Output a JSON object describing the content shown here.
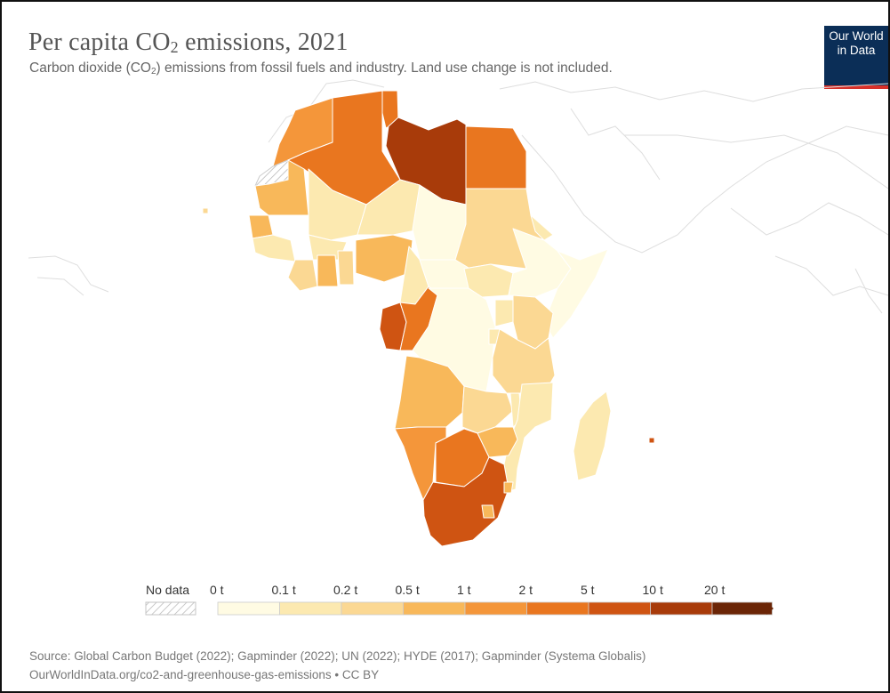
{
  "header": {
    "title_main": "Per capita CO",
    "title_sub": "2",
    "title_rest": " emissions, 2021",
    "subtitle_a": "Carbon dioxide (CO",
    "subtitle_sub": "2",
    "subtitle_b": ") emissions from fossil fuels and industry. Land use change is not included."
  },
  "logo": {
    "line1": "Our World",
    "line2": "in Data",
    "bg": "#0b2e57",
    "accent": "#d7312a"
  },
  "legend": {
    "no_data_label": "No data",
    "bins": [
      {
        "label": "0 t",
        "color": "#fffbe3"
      },
      {
        "label": "0.1 t",
        "color": "#fce9b0"
      },
      {
        "label": "0.2 t",
        "color": "#fbd893"
      },
      {
        "label": "0.5 t",
        "color": "#f8b85a"
      },
      {
        "label": "1 t",
        "color": "#f4963a"
      },
      {
        "label": "2 t",
        "color": "#e9761f"
      },
      {
        "label": "5 t",
        "color": "#cf5412"
      },
      {
        "label": "10 t",
        "color": "#a83b0a"
      },
      {
        "label": "20 t",
        "color": "#6b2506"
      }
    ]
  },
  "regions": [
    {
      "name": "Morocco",
      "bin": "1-2 t"
    },
    {
      "name": "Algeria",
      "bin": "2-5 t"
    },
    {
      "name": "Tunisia",
      "bin": "2-5 t"
    },
    {
      "name": "Libya",
      "bin": "5-10 t"
    },
    {
      "name": "Egypt",
      "bin": "2-5 t"
    },
    {
      "name": "Western Sahara",
      "bin": "No data"
    },
    {
      "name": "Mauritania",
      "bin": "0.5-1 t"
    },
    {
      "name": "Mali",
      "bin": "0.1-0.2 t"
    },
    {
      "name": "Niger",
      "bin": "0.1-0.2 t"
    },
    {
      "name": "Chad",
      "bin": "0-0.1 t"
    },
    {
      "name": "Sudan",
      "bin": "0.2-0.5 t"
    },
    {
      "name": "Senegal",
      "bin": "0.5-1 t"
    },
    {
      "name": "Nigeria",
      "bin": "0.5-1 t"
    },
    {
      "name": "Ghana",
      "bin": "0.5-1 t"
    },
    {
      "name": "Gabon",
      "bin": "2-5 t"
    },
    {
      "name": "Congo",
      "bin": "1-2 t"
    },
    {
      "name": "DR Congo",
      "bin": "0-0.1 t"
    },
    {
      "name": "Angola",
      "bin": "0.5-1 t"
    },
    {
      "name": "Namibia",
      "bin": "1-2 t"
    },
    {
      "name": "Botswana",
      "bin": "2-5 t"
    },
    {
      "name": "Zimbabwe",
      "bin": "0.5-1 t"
    },
    {
      "name": "South Africa",
      "bin": "5-10 t"
    },
    {
      "name": "Madagascar",
      "bin": "0.1-0.2 t"
    },
    {
      "name": "Ethiopia",
      "bin": "0.1-0.2 t"
    },
    {
      "name": "Kenya",
      "bin": "0.2-0.5 t"
    },
    {
      "name": "Tanzania",
      "bin": "0.2-0.5 t"
    }
  ],
  "footer": {
    "source": "Source: Global Carbon Budget (2022); Gapminder (2022); UN (2022); HYDE (2017); Gapminder (Systema Globalis)",
    "url": "OurWorldInData.org/co2-and-greenhouse-gas-emissions • CC BY"
  }
}
